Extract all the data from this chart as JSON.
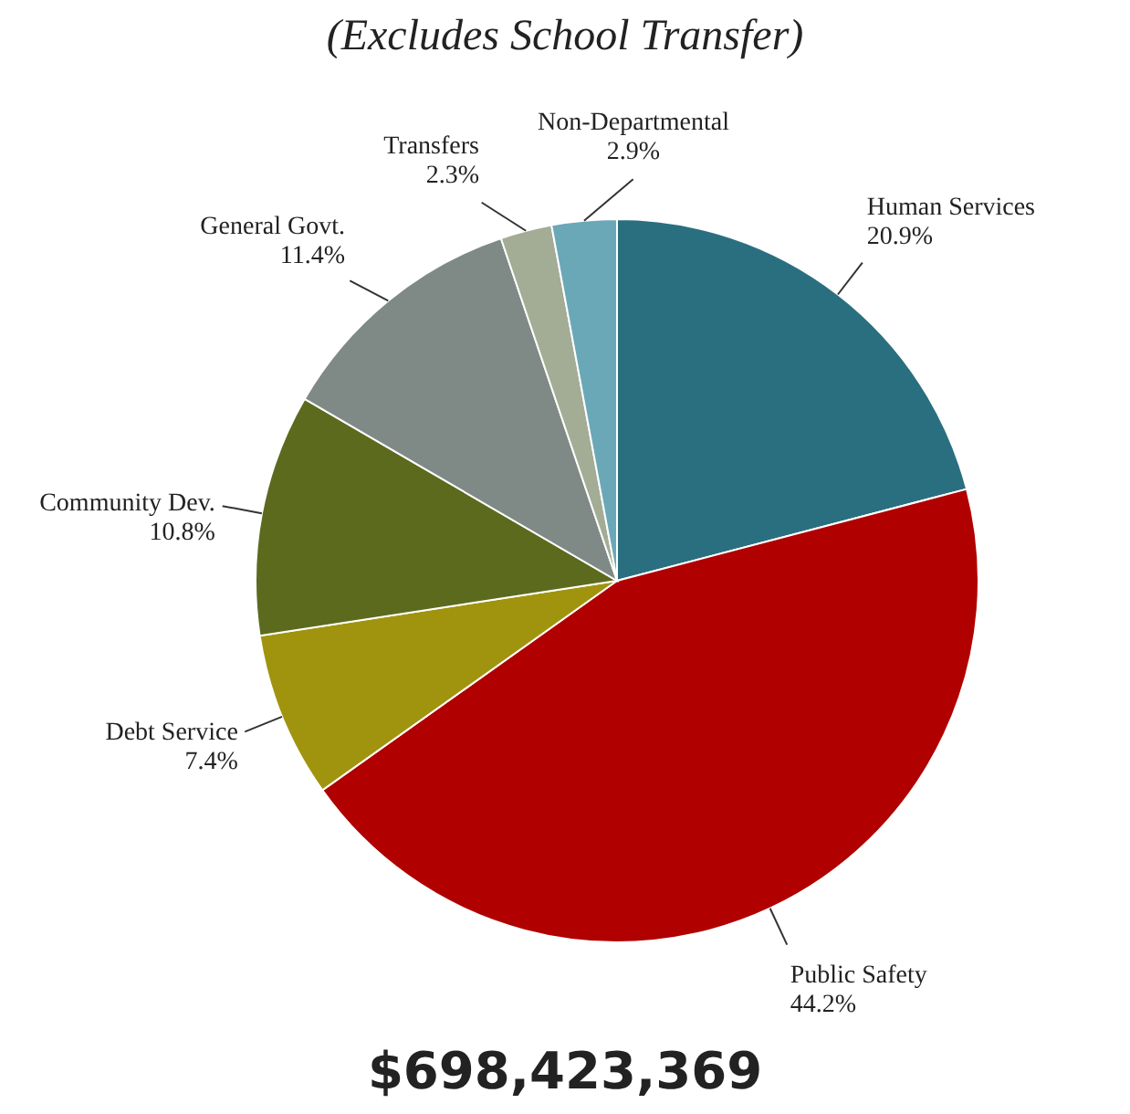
{
  "chart_data": {
    "type": "pie",
    "title": "(Excludes School Transfer)",
    "categories": [
      "Human Services",
      "Public Safety",
      "Debt Service",
      "Community Dev.",
      "General Govt.",
      "Transfers",
      "Non-Departmental"
    ],
    "values": [
      20.9,
      44.2,
      7.4,
      10.8,
      11.4,
      2.3,
      2.9
    ],
    "value_labels": [
      "20.9%",
      "44.2%",
      "7.4%",
      "10.8%",
      "11.4%",
      "2.3%",
      "2.9%"
    ],
    "colors": [
      "#2a6f80",
      "#b00000",
      "#a0940f",
      "#5c6a1e",
      "#7f8a87",
      "#a3ac95",
      "#6aa8b8"
    ],
    "annotations": [
      "$698,423,369"
    ]
  }
}
